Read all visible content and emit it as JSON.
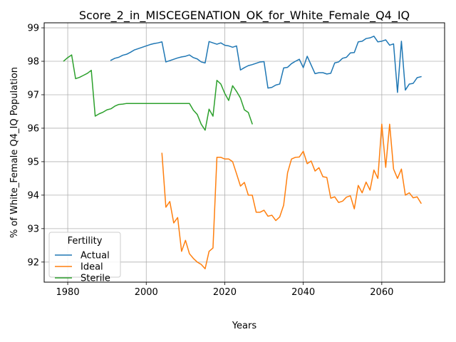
{
  "chart_data": {
    "type": "line",
    "title": "Score_2_in_MISCEGENATION_OK_for_White_Female_Q4_IQ",
    "xlabel": "Years",
    "ylabel": "% of White_Female Q4_IQ Population",
    "xlim": [
      1974,
      2076
    ],
    "ylim": [
      91.4,
      99.15
    ],
    "xticks": [
      1980,
      2000,
      2020,
      2040,
      2060
    ],
    "yticks": [
      92,
      93,
      94,
      95,
      96,
      97,
      98,
      99
    ],
    "grid": true,
    "legend": {
      "title": "Fertility",
      "position": "lower-left"
    },
    "series": [
      {
        "name": "Actual",
        "color": "#1f77b4",
        "x": [
          1991,
          1992,
          1993,
          1994,
          1995,
          1996,
          1997,
          1998,
          1999,
          2000,
          2001,
          2002,
          2003,
          2004,
          2005,
          2006,
          2007,
          2008,
          2009,
          2010,
          2011,
          2012,
          2013,
          2014,
          2015,
          2016,
          2017,
          2018,
          2019,
          2020,
          2021,
          2022,
          2023,
          2024,
          2025,
          2026,
          2027,
          2028,
          2029,
          2030,
          2031,
          2032,
          2033,
          2034,
          2035,
          2036,
          2037,
          2038,
          2039,
          2040,
          2041,
          2042,
          2043,
          2044,
          2045,
          2046,
          2047,
          2048,
          2049,
          2050,
          2051,
          2052,
          2053,
          2054,
          2055,
          2056,
          2057,
          2058,
          2059,
          2060,
          2061,
          2062,
          2063,
          2064,
          2065,
          2066,
          2067,
          2068,
          2069,
          2070
        ],
        "values": [
          98.03,
          98.09,
          98.12,
          98.18,
          98.21,
          98.27,
          98.34,
          98.38,
          98.42,
          98.46,
          98.5,
          98.53,
          98.55,
          98.58,
          97.98,
          98.02,
          98.06,
          98.1,
          98.13,
          98.15,
          98.19,
          98.11,
          98.07,
          97.98,
          97.95,
          98.59,
          98.55,
          98.51,
          98.55,
          98.48,
          98.46,
          98.42,
          98.46,
          97.74,
          97.81,
          97.87,
          97.9,
          97.94,
          97.98,
          97.99,
          97.2,
          97.22,
          97.29,
          97.32,
          97.8,
          97.82,
          97.93,
          98.0,
          98.06,
          97.81,
          98.15,
          97.89,
          97.63,
          97.66,
          97.66,
          97.62,
          97.64,
          97.95,
          97.98,
          98.09,
          98.12,
          98.25,
          98.26,
          98.58,
          98.6,
          98.68,
          98.7,
          98.75,
          98.58,
          98.6,
          98.64,
          98.48,
          98.52,
          97.07,
          98.6,
          97.14,
          97.32,
          97.34,
          97.51,
          97.54
        ]
      },
      {
        "name": "Ideal",
        "color": "#ff7f0e",
        "x": [
          2004,
          2005,
          2006,
          2007,
          2008,
          2009,
          2010,
          2011,
          2012,
          2013,
          2014,
          2015,
          2016,
          2017,
          2018,
          2019,
          2020,
          2021,
          2022,
          2023,
          2024,
          2025,
          2026,
          2027,
          2028,
          2029,
          2030,
          2031,
          2032,
          2033,
          2034,
          2035,
          2036,
          2037,
          2038,
          2039,
          2040,
          2041,
          2042,
          2043,
          2044,
          2045,
          2046,
          2047,
          2048,
          2049,
          2050,
          2051,
          2052,
          2053,
          2054,
          2055,
          2056,
          2057,
          2058,
          2059,
          2060,
          2061,
          2062,
          2063,
          2064,
          2065,
          2066,
          2067,
          2068,
          2069,
          2070
        ],
        "values": [
          95.25,
          93.64,
          93.81,
          93.17,
          93.33,
          92.32,
          92.65,
          92.25,
          92.11,
          92.0,
          91.93,
          91.8,
          92.32,
          92.42,
          95.13,
          95.13,
          95.08,
          95.08,
          95.0,
          94.64,
          94.27,
          94.38,
          94.0,
          94.0,
          93.49,
          93.49,
          93.55,
          93.37,
          93.4,
          93.24,
          93.35,
          93.7,
          94.67,
          95.08,
          95.13,
          95.14,
          95.31,
          94.94,
          95.02,
          94.72,
          94.82,
          94.55,
          94.53,
          93.91,
          93.95,
          93.78,
          93.82,
          93.94,
          93.98,
          93.59,
          94.29,
          94.07,
          94.39,
          94.15,
          94.75,
          94.5,
          96.12,
          94.83,
          96.12,
          94.78,
          94.5,
          94.78,
          94.0,
          94.07,
          93.92,
          93.95,
          93.76
        ]
      },
      {
        "name": "Sterile",
        "color": "#2ca02c",
        "x": [
          1979,
          1980,
          1981,
          1982,
          1983,
          1984,
          1985,
          1986,
          1987,
          1988,
          1989,
          1990,
          1991,
          1992,
          1993,
          1994,
          1995,
          1996,
          1997,
          1998,
          1999,
          2000,
          2001,
          2002,
          2003,
          2004,
          2005,
          2006,
          2007,
          2008,
          2009,
          2010,
          2011,
          2012,
          2013,
          2014,
          2015,
          2016,
          2017,
          2018,
          2019,
          2020,
          2021,
          2022,
          2023,
          2024,
          2025,
          2026,
          2027
        ],
        "values": [
          98.01,
          98.11,
          98.19,
          97.48,
          97.52,
          97.58,
          97.64,
          97.73,
          96.36,
          96.43,
          96.48,
          96.55,
          96.58,
          96.66,
          96.71,
          96.72,
          96.74,
          96.74,
          96.74,
          96.74,
          96.74,
          96.74,
          96.74,
          96.74,
          96.74,
          96.74,
          96.74,
          96.74,
          96.74,
          96.74,
          96.74,
          96.74,
          96.74,
          96.54,
          96.41,
          96.12,
          95.94,
          96.57,
          96.36,
          97.43,
          97.32,
          97.04,
          96.83,
          97.27,
          97.1,
          96.9,
          96.55,
          96.47,
          96.13
        ]
      }
    ]
  }
}
